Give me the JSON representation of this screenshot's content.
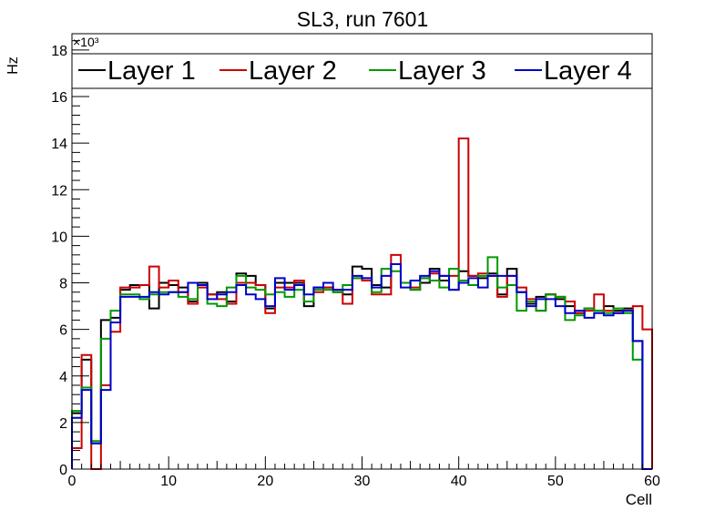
{
  "chart_data": {
    "type": "step-histogram",
    "title": "SL3, run 7601",
    "xlabel": "Cell",
    "ylabel": "Hz",
    "multiplier_label": "×10³",
    "xlim": [
      0,
      60
    ],
    "ylim": [
      0,
      18700
    ],
    "x_ticks": [
      0,
      10,
      20,
      30,
      40,
      50,
      60
    ],
    "y_ticks": [
      0,
      2,
      4,
      6,
      8,
      10,
      12,
      14,
      16,
      18
    ],
    "x_tick_labels": [
      "0",
      "10",
      "20",
      "30",
      "40",
      "50",
      "60"
    ],
    "y_tick_labels": [
      "0",
      "2",
      "4",
      "6",
      "8",
      "10",
      "12",
      "14",
      "16",
      "18"
    ],
    "bin_width": 1,
    "legend_position": "top",
    "series": [
      {
        "name": "Layer 1",
        "color": "#000000",
        "values": [
          2400,
          4700,
          1200,
          6400,
          6500,
          7700,
          7900,
          7900,
          6900,
          8000,
          7900,
          7800,
          7200,
          8000,
          7500,
          7600,
          7200,
          8400,
          8300,
          7900,
          6900,
          8000,
          8000,
          8000,
          7000,
          7800,
          7800,
          7700,
          7500,
          8700,
          8600,
          7900,
          7800,
          8800,
          8000,
          7700,
          8000,
          8600,
          8100,
          7700,
          8500,
          8300,
          8200,
          8400,
          7500,
          8600,
          7600,
          7100,
          7400,
          7500,
          7300,
          7000,
          6700,
          6900,
          6800,
          7000,
          6800,
          6900,
          5500,
          0
        ]
      },
      {
        "name": "Layer 2",
        "color": "#cc0000",
        "values": [
          900,
          4900,
          0,
          3600,
          5900,
          7800,
          7800,
          7900,
          8700,
          7800,
          8100,
          7600,
          7100,
          7800,
          7500,
          7300,
          7100,
          8000,
          8000,
          7900,
          6700,
          7800,
          7800,
          8100,
          7200,
          7600,
          7800,
          7600,
          7100,
          8200,
          8100,
          7500,
          7500,
          9200,
          8000,
          7800,
          8200,
          8400,
          8300,
          8300,
          14200,
          8300,
          8400,
          8300,
          7400,
          8300,
          7800,
          7300,
          6800,
          7500,
          7400,
          7200,
          6700,
          6800,
          7500,
          6800,
          6700,
          6800,
          7000,
          6000
        ]
      },
      {
        "name": "Layer 3",
        "color": "#009900",
        "values": [
          2500,
          3500,
          1200,
          5600,
          6800,
          7500,
          7500,
          7300,
          7500,
          7600,
          7600,
          7400,
          7300,
          7900,
          7100,
          7000,
          7800,
          8300,
          7800,
          7700,
          7500,
          7600,
          7400,
          7700,
          7200,
          7700,
          7700,
          7600,
          7900,
          8200,
          8200,
          7600,
          8600,
          8500,
          8000,
          7700,
          8200,
          8100,
          7800,
          8600,
          8100,
          7900,
          8300,
          9100,
          7800,
          7900,
          6800,
          7200,
          6800,
          7500,
          7400,
          6400,
          6600,
          6900,
          6800,
          6700,
          6900,
          6700,
          4700,
          0
        ]
      },
      {
        "name": "Layer 4",
        "color": "#0000cc",
        "values": [
          2200,
          3400,
          1100,
          3400,
          6300,
          7400,
          7400,
          7400,
          7600,
          7500,
          7600,
          7600,
          8000,
          7900,
          7300,
          7500,
          7600,
          7900,
          7500,
          7300,
          7000,
          8200,
          7700,
          7900,
          7500,
          7800,
          8000,
          7700,
          7700,
          8300,
          8200,
          7800,
          8300,
          8800,
          7800,
          8100,
          8300,
          8500,
          8300,
          7700,
          8000,
          8200,
          7800,
          8300,
          8300,
          8300,
          7600,
          7000,
          7300,
          7300,
          7000,
          6700,
          6800,
          6500,
          6700,
          6600,
          6700,
          6800,
          5500,
          0
        ]
      }
    ]
  }
}
